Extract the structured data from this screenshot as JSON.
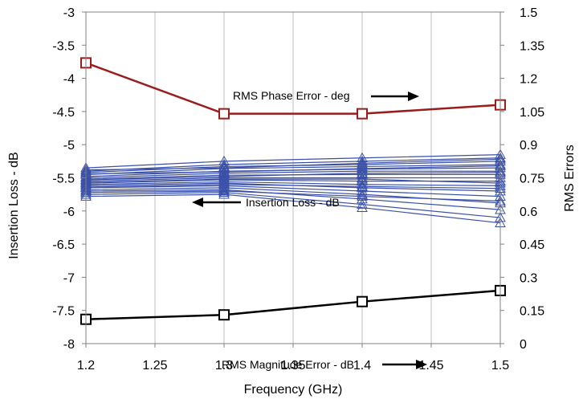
{
  "chart_data": {
    "type": "line",
    "xlabel": "Frequency (GHz)",
    "ylabel_left": "Insertion Loss - dB",
    "ylabel_right": "RMS Errors",
    "x_ticks": [
      "1.2",
      "1.25",
      "1.3",
      "1.35",
      "1.4",
      "1.45",
      "1.5"
    ],
    "y_left_ticks": [
      "-3",
      "-3.5",
      "-4",
      "-4.5",
      "-5",
      "-5.5",
      "-6",
      "-6.5",
      "-7",
      "-7.5",
      "-8"
    ],
    "y_right_ticks": [
      "1.5",
      "1.35",
      "1.2",
      "1.05",
      "0.9",
      "0.75",
      "0.6",
      "0.45",
      "0.3",
      "0.15",
      "0"
    ],
    "xlim": [
      1.2,
      1.5
    ],
    "ylim_left": [
      -8,
      -3
    ],
    "ylim_right": [
      0,
      1.5
    ],
    "grid": "vertical",
    "x": [
      1.2,
      1.3,
      1.4,
      1.5
    ],
    "series": [
      {
        "name": "RMS Phase Error - deg",
        "axis": "right",
        "color": "#9b1c1c",
        "marker": "square",
        "values": [
          1.27,
          1.04,
          1.04,
          1.08
        ]
      },
      {
        "name": "RMS Magnitude Error - dB",
        "axis": "right",
        "color": "#000000",
        "marker": "square",
        "values": [
          0.11,
          0.13,
          0.19,
          0.24
        ]
      }
    ],
    "insertion_loss_bundle": {
      "name": "Insertion Loss - dB",
      "axis": "left",
      "color": "#3a50a8",
      "marker": "triangle",
      "traces": [
        [
          -5.35,
          -5.25,
          -5.2,
          -5.15
        ],
        [
          -5.4,
          -5.3,
          -5.25,
          -5.2
        ],
        [
          -5.42,
          -5.33,
          -5.3,
          -5.25
        ],
        [
          -5.45,
          -5.36,
          -5.33,
          -5.3
        ],
        [
          -5.48,
          -5.4,
          -5.37,
          -5.35
        ],
        [
          -5.5,
          -5.43,
          -5.4,
          -5.4
        ],
        [
          -5.52,
          -5.46,
          -5.45,
          -5.45
        ],
        [
          -5.55,
          -5.5,
          -5.5,
          -5.5
        ],
        [
          -5.58,
          -5.53,
          -5.55,
          -5.55
        ],
        [
          -5.6,
          -5.56,
          -5.6,
          -5.62
        ],
        [
          -5.62,
          -5.58,
          -5.65,
          -5.7
        ],
        [
          -5.65,
          -5.62,
          -5.7,
          -5.78
        ],
        [
          -5.68,
          -5.65,
          -5.75,
          -5.88
        ],
        [
          -5.7,
          -5.68,
          -5.82,
          -5.98
        ],
        [
          -5.75,
          -5.72,
          -5.9,
          -6.1
        ],
        [
          -5.38,
          -5.35,
          -5.28,
          -5.22
        ],
        [
          -5.44,
          -5.41,
          -5.36,
          -5.32
        ],
        [
          -5.53,
          -5.48,
          -5.43,
          -5.42
        ],
        [
          -5.57,
          -5.52,
          -5.52,
          -5.58
        ],
        [
          -5.64,
          -5.6,
          -5.63,
          -5.66
        ],
        [
          -5.72,
          -5.7,
          -5.78,
          -5.85
        ],
        [
          -5.78,
          -5.75,
          -5.95,
          -6.18
        ]
      ]
    },
    "annotations": [
      {
        "text": "RMS Phase Error - deg",
        "arrow": "right"
      },
      {
        "text": "Insertion Loss - dB",
        "arrow": "left"
      },
      {
        "text": "RMS Magnitude Error - dB",
        "arrow": "right"
      }
    ]
  }
}
